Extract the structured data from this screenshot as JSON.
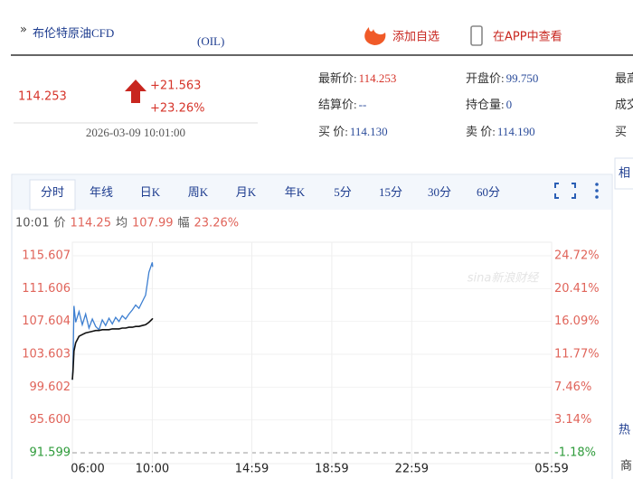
{
  "header": {
    "title": "布伦特原油CFD",
    "code": "(OIL)",
    "add": "添加自选",
    "app": "在APP中查看"
  },
  "quote": {
    "price": "114.253",
    "change": "+21.563",
    "change_pct": "+23.26%",
    "time": "2026-03-09 10:01:00",
    "fields": [
      [
        {
          "label": "最新价:",
          "value": "114.253"
        },
        {
          "label": "开盘价:",
          "value": "99.750"
        },
        {
          "label": "最高"
        }
      ],
      [
        {
          "label": "结算价:",
          "value": "--"
        },
        {
          "label": "持仓量:",
          "value": "0"
        },
        {
          "label": "成交"
        }
      ],
      [
        {
          "label": "买 价:",
          "value": "114.130"
        },
        {
          "label": "卖 价:",
          "value": "114.190"
        },
        {
          "label": "买"
        }
      ]
    ]
  },
  "tabs": [
    "分时",
    "年线",
    "日K",
    "周K",
    "月K",
    "年K",
    "5分",
    "15分",
    "30分",
    "60分"
  ],
  "info": {
    "time": "10:01",
    "price_label": "价",
    "price": "114.25",
    "avg_label": "均",
    "avg": "107.99",
    "amp_label": "幅",
    "amp": "23.26%"
  },
  "watermark": "sina新浪财经",
  "side": [
    "相",
    "热",
    "商"
  ],
  "chart_data": {
    "type": "line",
    "x": [
      "06:00",
      "06:02",
      "06:05",
      "06:10",
      "06:20",
      "06:30",
      "06:40",
      "06:50",
      "07:00",
      "07:10",
      "07:20",
      "07:30",
      "07:40",
      "07:50",
      "08:00",
      "08:10",
      "08:20",
      "08:30",
      "08:40",
      "08:50",
      "09:00",
      "09:10",
      "09:20",
      "09:30",
      "09:40",
      "09:50",
      "10:00",
      "10:01"
    ],
    "series": [
      {
        "color": "#3d7fd1",
        "values": [
          100.5,
          102,
          109.5,
          107.5,
          108.8,
          107.2,
          108.5,
          106.8,
          107.9,
          107,
          106.6,
          107.8,
          107.1,
          108,
          107.3,
          108.1,
          107.6,
          108.3,
          107.9,
          108.5,
          109,
          109.6,
          109.2,
          110,
          110.8,
          113.6,
          114.8,
          114.25
        ]
      },
      {
        "color": "#111111",
        "values": [
          100.5,
          101.5,
          104,
          105,
          105.8,
          106,
          106.2,
          106.3,
          106.4,
          106.5,
          106.5,
          106.6,
          106.6,
          106.6,
          106.7,
          106.7,
          106.7,
          106.8,
          106.8,
          106.9,
          106.9,
          107,
          107,
          107.1,
          107.2,
          107.5,
          107.9,
          107.99
        ]
      }
    ],
    "xlim": [
      "06:00",
      "05:59"
    ],
    "xticks": [
      "06:00",
      "10:00",
      "14:59",
      "18:59",
      "22:59",
      "05:59"
    ],
    "ylim": [
      91.599,
      115.607
    ],
    "yticks": [
      115.607,
      111.606,
      107.604,
      103.603,
      99.602,
      {
        "value": 95.6,
        "label": "95.600"
      },
      91.599
    ],
    "y2lim": [
      -1.18,
      24.72
    ],
    "y2ticks": [
      {
        "value": 24.72,
        "label": "24.72%"
      },
      {
        "value": 20.41,
        "label": "20.41%"
      },
      {
        "value": 16.09,
        "label": "16.09%"
      },
      {
        "value": 11.77,
        "label": "11.77%"
      },
      {
        "value": 7.46,
        "label": "7.46%"
      },
      {
        "value": 3.14,
        "label": "3.14%"
      },
      {
        "value": -1.18,
        "label": "-1.18%"
      }
    ],
    "grid": true
  }
}
